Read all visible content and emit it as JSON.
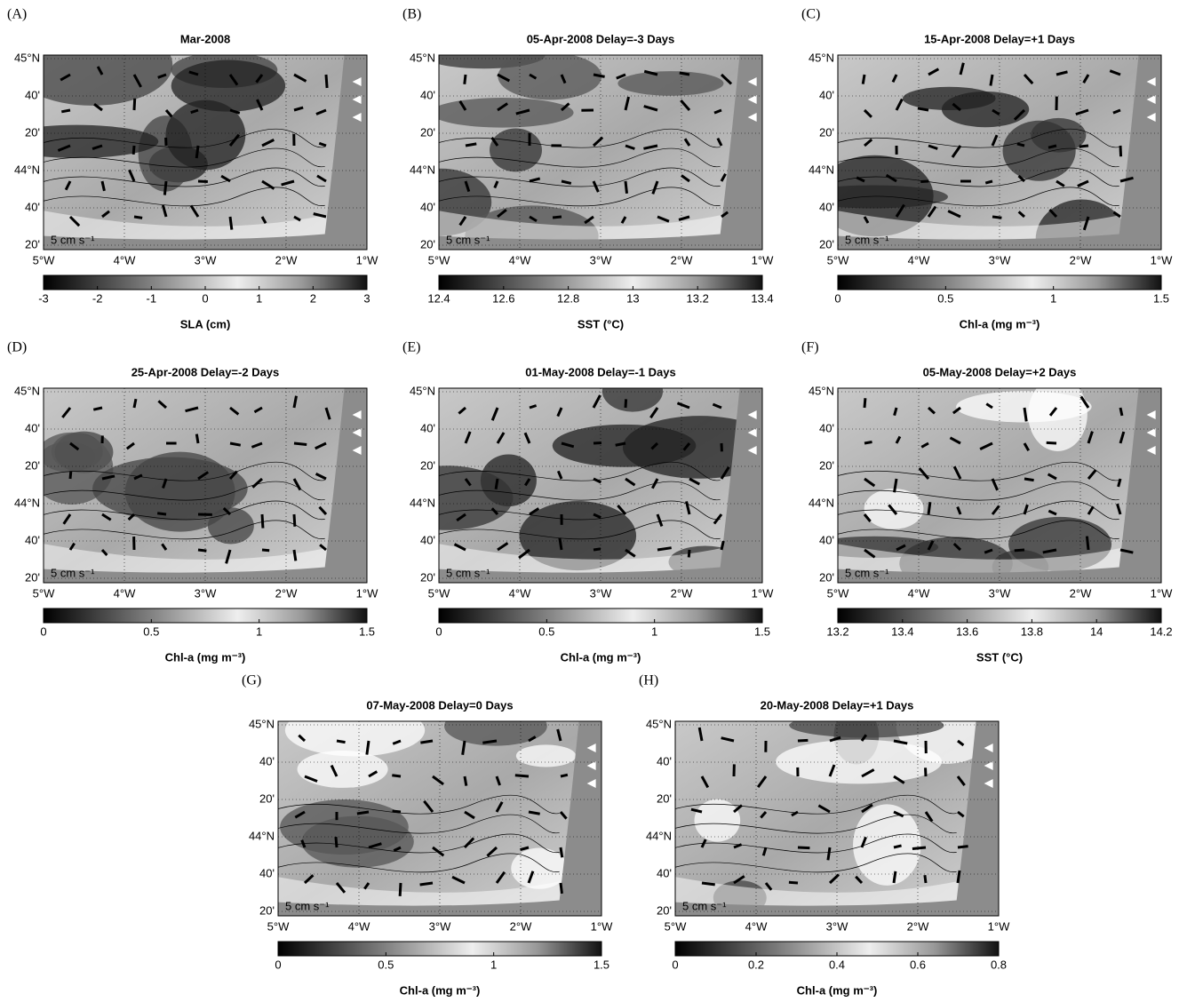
{
  "lon_labels": [
    "5°W",
    "4°W",
    "3°W",
    "2°W",
    "1°W"
  ],
  "lat_labels": [
    "45°N",
    "40'",
    "20'",
    "44°N",
    "40'",
    "20'"
  ],
  "scale_label": "5 cm s⁻¹",
  "panels": [
    {
      "label": "(A)",
      "title": "Mar-2008",
      "colorbar": {
        "label": "SLA (cm)",
        "lim": [
          -3,
          3
        ],
        "ticks": [
          -3,
          -2,
          -1,
          0,
          1,
          2,
          3
        ]
      }
    },
    {
      "label": "(B)",
      "title": "05-Apr-2008 Delay=-3 Days",
      "colorbar": {
        "label": "SST (°C)",
        "lim": [
          12.4,
          13.4
        ],
        "ticks": [
          12.4,
          12.6,
          12.8,
          13,
          13.2,
          13.4
        ]
      }
    },
    {
      "label": "(C)",
      "title": "15-Apr-2008 Delay=+1 Days",
      "colorbar": {
        "label": "Chl-a (mg m⁻³)",
        "lim": [
          0,
          1.5
        ],
        "ticks": [
          0,
          0.5,
          1,
          1.5
        ]
      }
    },
    {
      "label": "(D)",
      "title": "25-Apr-2008 Delay=-2 Days",
      "colorbar": {
        "label": "Chl-a (mg m⁻³)",
        "lim": [
          0,
          1.5
        ],
        "ticks": [
          0,
          0.5,
          1,
          1.5
        ]
      }
    },
    {
      "label": "(E)",
      "title": "01-May-2008 Delay=-1 Days",
      "colorbar": {
        "label": "Chl-a (mg m⁻³)",
        "lim": [
          0,
          1.5
        ],
        "ticks": [
          0,
          0.5,
          1,
          1.5
        ]
      }
    },
    {
      "label": "(F)",
      "title": "05-May-2008 Delay=+2 Days",
      "colorbar": {
        "label": "SST (°C)",
        "lim": [
          13.2,
          14.2
        ],
        "ticks": [
          13.2,
          13.4,
          13.6,
          13.8,
          14,
          14.2
        ]
      }
    },
    {
      "label": "(G)",
      "title": "07-May-2008 Delay=0 Days",
      "colorbar": {
        "label": "Chl-a (mg m⁻³)",
        "lim": [
          0,
          1.5
        ],
        "ticks": [
          0,
          0.5,
          1,
          1.5
        ]
      }
    },
    {
      "label": "(H)",
      "title": "20-May-2008 Delay=+1 Days",
      "colorbar": {
        "label": "Chl-a (mg m⁻³)",
        "lim": [
          0,
          0.8
        ],
        "ticks": [
          0,
          0.2,
          0.4,
          0.6,
          0.8
        ]
      }
    }
  ]
}
